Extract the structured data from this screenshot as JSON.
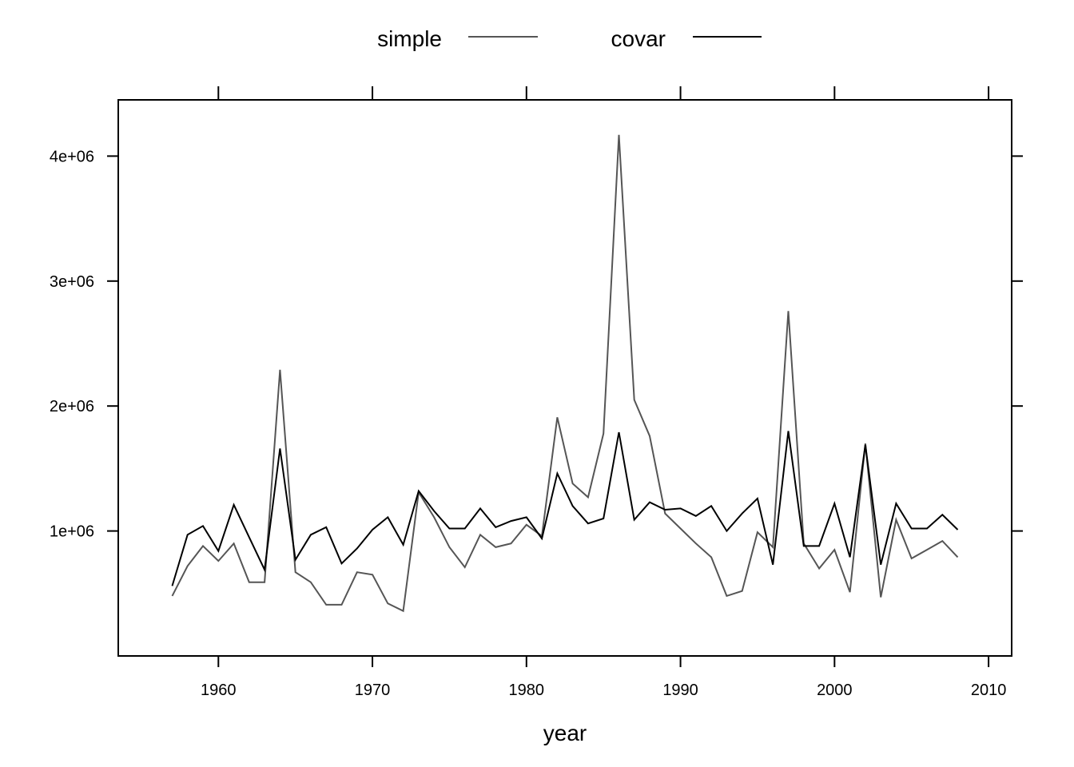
{
  "chart_data": {
    "type": "line",
    "xlabel": "year",
    "ylabel": "",
    "xlim": [
      1953.5,
      2011.5
    ],
    "ylim": [
      0,
      4450000
    ],
    "x_ticks": [
      1960,
      1970,
      1980,
      1990,
      2000,
      2010
    ],
    "x_tick_labels": [
      "1960",
      "1970",
      "1980",
      "1990",
      "2000",
      "2010"
    ],
    "y_ticks": [
      1000000,
      2000000,
      3000000,
      4000000
    ],
    "y_tick_labels": [
      "1e+06",
      "2e+06",
      "3e+06",
      "4e+06"
    ],
    "legend_position": "top",
    "grid": false,
    "x": [
      1957,
      1958,
      1959,
      1960,
      1961,
      1962,
      1963,
      1964,
      1965,
      1966,
      1967,
      1968,
      1969,
      1970,
      1971,
      1972,
      1973,
      1974,
      1975,
      1976,
      1977,
      1978,
      1979,
      1980,
      1981,
      1982,
      1983,
      1984,
      1985,
      1986,
      1987,
      1988,
      1989,
      1990,
      1991,
      1992,
      1993,
      1994,
      1995,
      1996,
      1997,
      1998,
      1999,
      2000,
      2001,
      2002,
      2003,
      2004,
      2005,
      2006,
      2007,
      2008
    ],
    "series": [
      {
        "name": "simple",
        "color": "#555555",
        "values": [
          480000,
          720000,
          880000,
          760000,
          900000,
          590000,
          590000,
          2290000,
          670000,
          590000,
          410000,
          410000,
          670000,
          650000,
          420000,
          360000,
          1310000,
          1110000,
          870000,
          710000,
          970000,
          870000,
          900000,
          1050000,
          960000,
          1910000,
          1380000,
          1270000,
          1780000,
          4170000,
          2050000,
          1760000,
          1140000,
          1020000,
          900000,
          790000,
          480000,
          520000,
          990000,
          870000,
          2760000,
          900000,
          700000,
          850000,
          510000,
          1700000,
          470000,
          1090000,
          780000,
          850000,
          920000,
          790000
        ]
      },
      {
        "name": "covar",
        "color": "#000000",
        "values": [
          560000,
          970000,
          1040000,
          840000,
          1210000,
          950000,
          690000,
          1660000,
          770000,
          970000,
          1030000,
          740000,
          860000,
          1010000,
          1110000,
          890000,
          1320000,
          1160000,
          1020000,
          1020000,
          1180000,
          1030000,
          1080000,
          1110000,
          940000,
          1460000,
          1200000,
          1060000,
          1100000,
          1790000,
          1090000,
          1230000,
          1170000,
          1180000,
          1120000,
          1200000,
          1000000,
          1140000,
          1260000,
          730000,
          1800000,
          880000,
          880000,
          1220000,
          790000,
          1690000,
          730000,
          1220000,
          1020000,
          1020000,
          1130000,
          1010000
        ]
      }
    ]
  }
}
